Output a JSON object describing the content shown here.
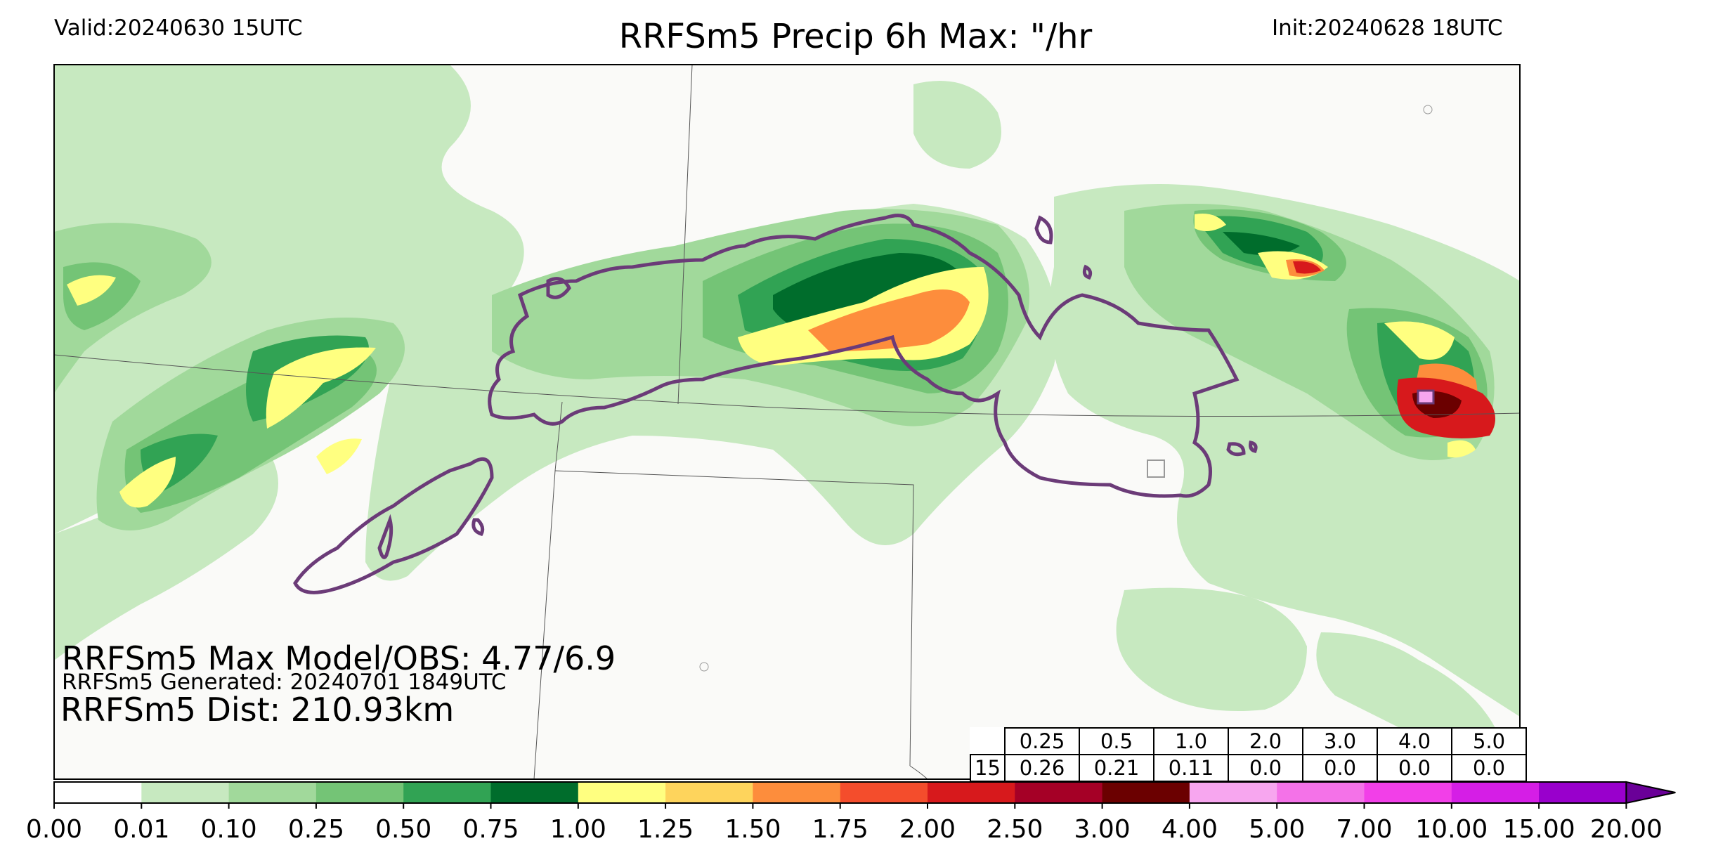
{
  "header": {
    "valid": "Valid:20240630 15UTC",
    "title": "RRFSm5 Precip 6h Max: \"/hr",
    "init": "Init:20240628 18UTC"
  },
  "stats": {
    "max_line": "RRFSm5 Max Model/OBS: 4.77/6.9",
    "generated_line": "RRFSm5 Generated: 20240701 1849UTC",
    "dist_line": "RRFSm5 Dist: 210.93km"
  },
  "score_table": {
    "thresholds": [
      "0.25",
      "0.5",
      "1.0",
      "2.0",
      "3.0",
      "4.0",
      "5.0"
    ],
    "row_label": "15",
    "values": [
      "0.26",
      "0.21",
      "0.11",
      "0.0",
      "0.0",
      "0.0",
      "0.0"
    ]
  },
  "colorbar": {
    "labels": [
      "0.00",
      "0.01",
      "0.10",
      "0.25",
      "0.50",
      "0.75",
      "1.00",
      "1.25",
      "1.50",
      "1.75",
      "2.00",
      "2.50",
      "3.00",
      "4.00",
      "5.00",
      "7.00",
      "10.00",
      "15.00",
      "20.00"
    ],
    "colors": [
      "#ffffff",
      "#c7e9c0",
      "#a1d99b",
      "#74c476",
      "#31a354",
      "#006d2c",
      "#ffff80",
      "#fed45c",
      "#fd8d3c",
      "#f44d2c",
      "#d7191c",
      "#a50026",
      "#6b0000",
      "#f7a6ef",
      "#f472e8",
      "#f23fe8",
      "#d51ee6",
      "#9900cc"
    ],
    "extend_color": "#6a0098"
  },
  "map_colors": {
    "background": "#fafaf8",
    "obs_contour": "#6b3b78",
    "border": "#555555"
  }
}
